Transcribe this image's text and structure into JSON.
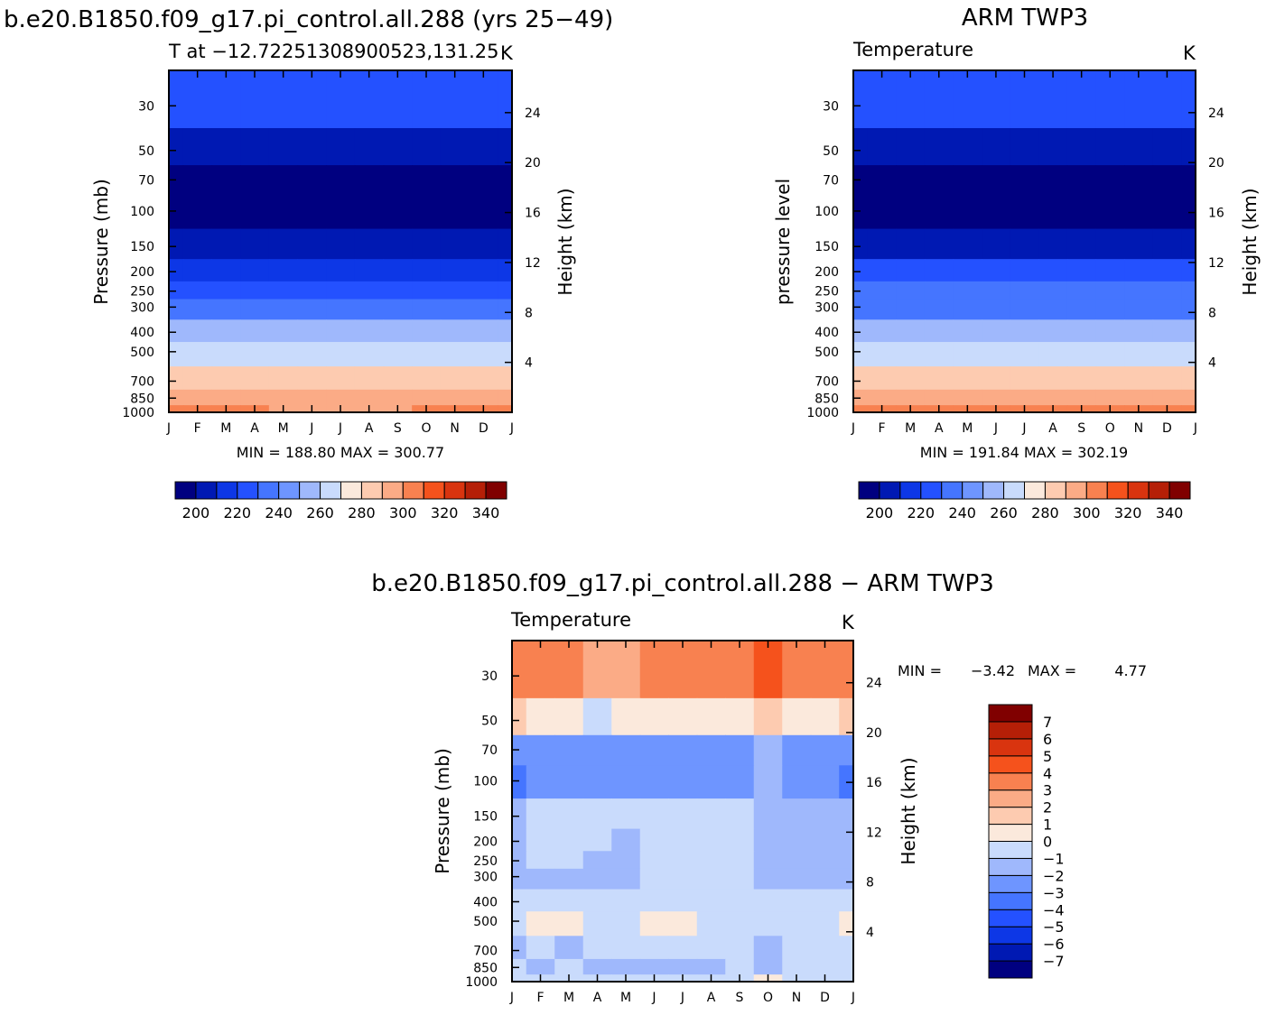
{
  "colors": {
    "abs_levels": [
      "#000080",
      "#0019b3",
      "#0d37e6",
      "#2451ff",
      "#4575ff",
      "#6e95ff",
      "#9fb8fc",
      "#c9dbfc",
      "#fbe9dc",
      "#fdcbb0",
      "#fbab86",
      "#f88150",
      "#f5521c",
      "#d9340f",
      "#b51f07",
      "#800000"
    ],
    "diff_levels": [
      "#000080",
      "#0019b3",
      "#0d37e6",
      "#2451ff",
      "#4575ff",
      "#6e95ff",
      "#9fb8fc",
      "#c9dbfc",
      "#fbe9dc",
      "#fdcbb0",
      "#fbab86",
      "#f88150",
      "#f5521c",
      "#d9340f",
      "#b51f07",
      "#800000"
    ]
  },
  "panel1": {
    "title": "b.e20.B1850.f09_g17.pi_control.all.288 (yrs 25−49)",
    "subtitle": "T at −12.72251308900523,131.25",
    "units": "K",
    "ylabel": "Pressure (mb)",
    "ylabel2": "Height (km)",
    "minmax": "MIN = 188.80 MAX = 300.77"
  },
  "panel2": {
    "title": "ARM TWP3",
    "subtitle": "Temperature",
    "units": "K",
    "ylabel": "pressure level",
    "ylabel2": "Height (km)",
    "minmax": "MIN = 191.84 MAX = 302.19"
  },
  "panel3": {
    "title": "b.e20.B1850.f09_g17.pi_control.all.288 − ARM TWP3",
    "subtitle": "Temperature",
    "units": "K",
    "ylabel": "Pressure (mb)",
    "ylabel2": "Height (km)",
    "min_label": "MIN =",
    "min_value": "−3.42",
    "max_label": "MAX =",
    "max_value": "4.77"
  },
  "chart_data": [
    {
      "type": "heatmap",
      "panel": "panel1",
      "x": [
        "J",
        "F",
        "M",
        "A",
        "M",
        "J",
        "J",
        "A",
        "S",
        "O",
        "N",
        "D",
        "J"
      ],
      "y_pressure_ticks": [
        30,
        50,
        70,
        100,
        150,
        200,
        250,
        300,
        400,
        500,
        700,
        850,
        1000
      ],
      "y_height_ticks": [
        4,
        8,
        12,
        16,
        20,
        24
      ],
      "colorbar_levels": [
        190,
        200,
        210,
        220,
        230,
        240,
        250,
        260,
        270,
        280,
        290,
        300,
        310,
        320,
        330,
        340
      ],
      "colorbar_tick_labels": [
        "200",
        "220",
        "240",
        "260",
        "280",
        "300",
        "320",
        "340"
      ],
      "values_K": [
        {
          "p": 30,
          "T": [
            228,
            227,
            227,
            226,
            225,
            225,
            225,
            225,
            225,
            226,
            226,
            227,
            228
          ]
        },
        {
          "p": 50,
          "T": [
            209,
            208,
            208,
            207,
            206,
            206,
            205,
            205,
            206,
            206,
            207,
            208,
            209
          ]
        },
        {
          "p": 70,
          "T": [
            198,
            198,
            197,
            196,
            195,
            195,
            195,
            195,
            195,
            196,
            197,
            197,
            198
          ]
        },
        {
          "p": 100,
          "T": [
            192,
            192,
            191,
            191,
            190,
            190,
            190,
            190,
            190,
            190,
            191,
            191,
            192
          ]
        },
        {
          "p": 150,
          "T": [
            206,
            206,
            206,
            206,
            206,
            206,
            206,
            206,
            206,
            206,
            206,
            206,
            206
          ]
        },
        {
          "p": 200,
          "T": [
            219,
            219,
            219,
            219,
            219,
            219,
            219,
            219,
            219,
            219,
            219,
            219,
            219
          ]
        },
        {
          "p": 250,
          "T": [
            229,
            229,
            229,
            229,
            229,
            229,
            229,
            229,
            229,
            229,
            229,
            229,
            229
          ]
        },
        {
          "p": 300,
          "T": [
            238,
            238,
            238,
            238,
            237,
            237,
            237,
            237,
            238,
            238,
            238,
            238,
            238
          ]
        },
        {
          "p": 400,
          "T": [
            254,
            254,
            254,
            254,
            254,
            254,
            254,
            254,
            254,
            254,
            254,
            254,
            254
          ]
        },
        {
          "p": 500,
          "T": [
            267,
            267,
            267,
            267,
            266,
            266,
            266,
            266,
            266,
            267,
            267,
            267,
            267
          ]
        },
        {
          "p": 700,
          "T": [
            284,
            284,
            284,
            284,
            283,
            283,
            283,
            283,
            283,
            284,
            284,
            284,
            284
          ]
        },
        {
          "p": 850,
          "T": [
            293,
            293,
            293,
            293,
            292,
            291,
            291,
            291,
            292,
            292,
            293,
            293,
            293
          ]
        },
        {
          "p": 1000,
          "T": [
            300,
            300,
            300,
            300,
            299,
            298,
            298,
            298,
            299,
            300,
            300,
            300,
            300
          ]
        }
      ]
    },
    {
      "type": "heatmap",
      "panel": "panel2",
      "x": [
        "J",
        "F",
        "M",
        "A",
        "M",
        "J",
        "J",
        "A",
        "S",
        "O",
        "N",
        "D",
        "J"
      ],
      "y_pressure_ticks": [
        30,
        50,
        70,
        100,
        150,
        200,
        250,
        300,
        400,
        500,
        700,
        850,
        1000
      ],
      "y_height_ticks": [
        4,
        8,
        12,
        16,
        20,
        24
      ],
      "colorbar_levels": [
        190,
        200,
        210,
        220,
        230,
        240,
        250,
        260,
        270,
        280,
        290,
        300,
        310,
        320,
        330,
        340
      ],
      "colorbar_tick_labels": [
        "200",
        "220",
        "240",
        "260",
        "280",
        "300",
        "320",
        "340"
      ],
      "values_K": [
        {
          "p": 30,
          "T": [
            224,
            224,
            224,
            223,
            223,
            223,
            222,
            222,
            223,
            223,
            224,
            224,
            224
          ]
        },
        {
          "p": 50,
          "T": [
            208,
            208,
            207,
            207,
            206,
            206,
            205,
            205,
            205,
            206,
            207,
            207,
            208
          ]
        },
        {
          "p": 70,
          "T": [
            197,
            197,
            197,
            196,
            196,
            195,
            195,
            194,
            195,
            196,
            196,
            197,
            197
          ]
        },
        {
          "p": 100,
          "T": [
            193,
            193,
            193,
            192,
            192,
            192,
            192,
            192,
            192,
            192,
            193,
            193,
            193
          ]
        },
        {
          "p": 150,
          "T": [
            207,
            207,
            207,
            207,
            207,
            207,
            207,
            207,
            207,
            207,
            207,
            207,
            207
          ]
        },
        {
          "p": 200,
          "T": [
            220,
            220,
            220,
            220,
            220,
            220,
            220,
            220,
            220,
            220,
            220,
            220,
            220
          ]
        },
        {
          "p": 250,
          "T": [
            230,
            230,
            230,
            230,
            230,
            230,
            230,
            230,
            230,
            230,
            230,
            230,
            230
          ]
        },
        {
          "p": 300,
          "T": [
            239,
            239,
            239,
            239,
            239,
            239,
            239,
            239,
            239,
            239,
            239,
            239,
            239
          ]
        },
        {
          "p": 400,
          "T": [
            255,
            255,
            255,
            255,
            255,
            255,
            255,
            255,
            255,
            255,
            255,
            255,
            255
          ]
        },
        {
          "p": 500,
          "T": [
            267,
            267,
            267,
            267,
            267,
            267,
            267,
            267,
            267,
            267,
            267,
            267,
            267
          ]
        },
        {
          "p": 700,
          "T": [
            284,
            284,
            284,
            284,
            284,
            284,
            284,
            284,
            284,
            284,
            284,
            284,
            284
          ]
        },
        {
          "p": 850,
          "T": [
            293,
            293,
            293,
            293,
            293,
            293,
            293,
            293,
            293,
            293,
            293,
            293,
            293
          ]
        },
        {
          "p": 1000,
          "T": [
            301,
            301,
            301,
            301,
            301,
            301,
            301,
            301,
            301,
            301,
            301,
            301,
            301
          ]
        }
      ]
    },
    {
      "type": "heatmap",
      "panel": "panel3",
      "x": [
        "J",
        "F",
        "M",
        "A",
        "M",
        "J",
        "J",
        "A",
        "S",
        "O",
        "N",
        "D",
        "J"
      ],
      "y_pressure_ticks": [
        30,
        50,
        70,
        100,
        150,
        200,
        250,
        300,
        400,
        500,
        700,
        850,
        1000
      ],
      "y_height_ticks": [
        4,
        8,
        12,
        16,
        20,
        24
      ],
      "colorbar_levels": [
        -8,
        -7,
        -6,
        -5,
        -4,
        -3,
        -2,
        -1,
        0,
        1,
        2,
        3,
        4,
        5,
        6,
        7,
        8
      ],
      "colorbar_tick_labels": [
        "−7",
        "−6",
        "−5",
        "−4",
        "−3",
        "−2",
        "−1",
        "0",
        "1",
        "2",
        "3",
        "4",
        "5",
        "6",
        "7"
      ],
      "values_K": [
        {
          "p": 30,
          "T": [
            3.5,
            3.2,
            3.5,
            2.0,
            2.5,
            3.0,
            3.0,
            3.0,
            3.5,
            4.5,
            3.5,
            3.0,
            3.5
          ]
        },
        {
          "p": 50,
          "T": [
            1.0,
            0.5,
            0.5,
            -0.5,
            0.2,
            0.5,
            0.5,
            0.5,
            0.5,
            1.0,
            0.5,
            0.5,
            1.0
          ]
        },
        {
          "p": 70,
          "T": [
            -2.5,
            -2.3,
            -2.2,
            -2.8,
            -2.8,
            -2.3,
            -2.2,
            -2.2,
            -2.3,
            -1.5,
            -2.5,
            -2.3,
            -2.5
          ]
        },
        {
          "p": 100,
          "T": [
            -3.5,
            -2.5,
            -2.2,
            -2.5,
            -2.6,
            -2.3,
            -2.2,
            -2.2,
            -2.3,
            -2.0,
            -2.3,
            -2.5,
            -3.3
          ]
        },
        {
          "p": 150,
          "T": [
            -1.2,
            -0.6,
            -0.6,
            -0.8,
            -0.7,
            -0.6,
            -0.6,
            -0.6,
            -0.7,
            -1.2,
            -1.3,
            -1.3,
            -1.4
          ]
        },
        {
          "p": 200,
          "T": [
            -1.3,
            -0.7,
            -0.6,
            -0.8,
            -1.2,
            -0.6,
            -0.6,
            -0.6,
            -0.7,
            -1.3,
            -1.4,
            -1.5,
            -1.4
          ]
        },
        {
          "p": 250,
          "T": [
            -1.2,
            -0.7,
            -0.6,
            -1.2,
            -1.3,
            -0.6,
            -0.6,
            -0.6,
            -0.7,
            -1.2,
            -1.5,
            -1.8,
            -1.3
          ]
        },
        {
          "p": 300,
          "T": [
            -1.2,
            -1.1,
            -1.2,
            -1.3,
            -1.2,
            -0.7,
            -0.6,
            -0.6,
            -0.8,
            -1.2,
            -1.4,
            -1.4,
            -1.3
          ]
        },
        {
          "p": 400,
          "T": [
            -0.6,
            -0.6,
            -0.6,
            -0.7,
            -0.6,
            -0.6,
            -0.6,
            -0.6,
            -0.6,
            -0.7,
            -0.7,
            -0.7,
            -0.6
          ]
        },
        {
          "p": 500,
          "T": [
            -0.3,
            0.3,
            0.2,
            -0.5,
            -0.5,
            0.2,
            0.2,
            -0.3,
            -0.5,
            -0.5,
            -0.5,
            -0.4,
            0.2
          ]
        },
        {
          "p": 700,
          "T": [
            -1.2,
            -0.6,
            -1.2,
            -0.7,
            -0.6,
            -0.6,
            -0.6,
            -0.6,
            -0.6,
            -1.2,
            -0.7,
            -0.6,
            -0.6
          ]
        },
        {
          "p": 850,
          "T": [
            -0.6,
            -1.2,
            -0.8,
            -1.3,
            -1.5,
            -1.5,
            -1.3,
            -1.2,
            -0.7,
            -1.3,
            -0.7,
            -0.6,
            -0.6
          ]
        },
        {
          "p": 1000,
          "T": [
            -0.5,
            -0.4,
            -0.4,
            -0.5,
            -0.5,
            -0.5,
            -0.5,
            -0.4,
            -0.3,
            0.3,
            -0.3,
            -0.4,
            -0.4
          ]
        }
      ]
    }
  ]
}
